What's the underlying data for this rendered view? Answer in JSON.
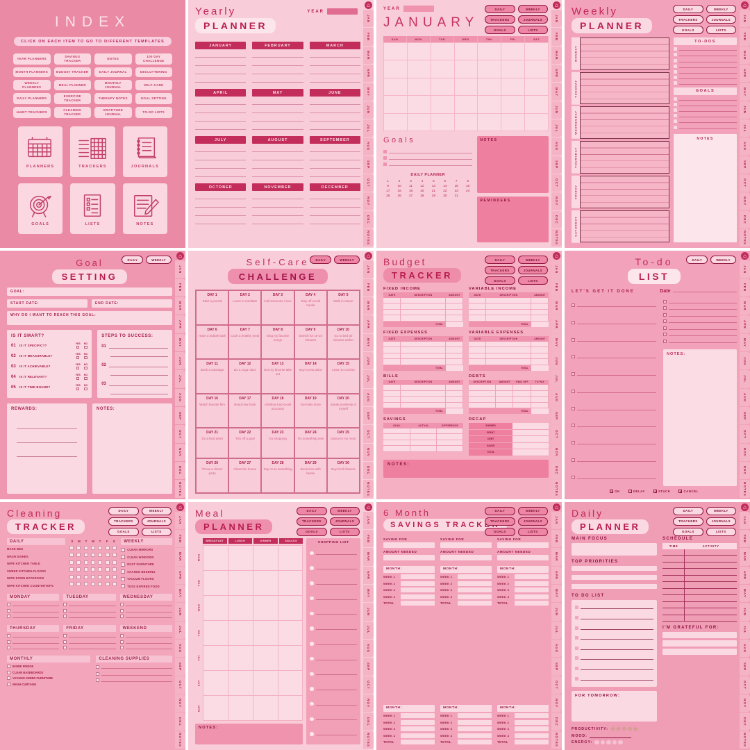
{
  "shared": {
    "home_icon": "⌂",
    "month_tabs": [
      "JAN",
      "FEB",
      "MAR",
      "APR",
      "MAY",
      "JUN",
      "JUL",
      "AUG",
      "SEP",
      "OCT",
      "NOV",
      "DEC",
      "NOTES"
    ],
    "nav_buttons": [
      "DAILY",
      "WEEKLY",
      "TRACKERS",
      "JOURNALS",
      "GOALS",
      "LISTS"
    ]
  },
  "index": {
    "title": "INDEX",
    "subtitle": "CLICK ON EACH ITEM TO GO TO DIFFERENT TEMPLATES",
    "buttons": [
      "YEAR PLANNERS",
      "SAVINGS TRACKER",
      "NOTES",
      "100 DAY CHALLENGE",
      "MONTH PLANNERS",
      "BUDGET TRACKER",
      "DAILY JOURNAL",
      "DECLUTTERING",
      "WEEKLY PLANNERS",
      "MEAL PLANNER",
      "MONTHLY JOURNAL",
      "SELF-CARE",
      "DAILY PLANNERS",
      "EXERCISE TRACKER",
      "THERAPY NOTES",
      "GOAL SETTING",
      "HABIT TRACKERS",
      "CLEANING TRACKER",
      "GRATITUDE JOURNAL",
      "TO-DO LISTS"
    ],
    "tiles": [
      {
        "icon": "calendar-icon",
        "label": "PLANNERS"
      },
      {
        "icon": "tracker-grid-icon",
        "label": "TRACKERS"
      },
      {
        "icon": "notebook-icon",
        "label": "JOURNALS"
      },
      {
        "icon": "target-icon",
        "label": "GOALS"
      },
      {
        "icon": "checklist-icon",
        "label": "LISTS"
      },
      {
        "icon": "pencil-paper-icon",
        "label": "NOTES"
      }
    ]
  },
  "yearly": {
    "title_script": "Yearly",
    "title_main": "PLANNER",
    "year_label": "YEAR",
    "months": [
      "JANUARY",
      "FEBRUARY",
      "MARCH",
      "APRIL",
      "MAY",
      "JUNE",
      "JULY",
      "AUGUST",
      "SEPTEMBER",
      "OCTOBER",
      "NOVEMBER",
      "DECEMBER"
    ]
  },
  "january": {
    "year_label": "YEAR",
    "title": "JANUARY",
    "day_headers": [
      "SUN",
      "MON",
      "TUE",
      "WED",
      "THU",
      "FRI",
      "SAT"
    ],
    "goals_label": "Goals",
    "daily_planner_label": "DAILY PLANNER",
    "day_numbers": [
      1,
      2,
      3,
      4,
      5,
      6,
      7,
      8,
      9,
      10,
      11,
      12,
      13,
      14,
      15,
      16,
      17,
      18,
      19,
      20,
      21,
      22,
      23,
      24,
      25,
      26,
      27,
      28,
      29,
      30,
      31
    ],
    "notes_label": "NOTES",
    "reminders_label": "REMINDERS"
  },
  "weekly": {
    "title_script": "Weekly",
    "title_main": "PLANNER",
    "days": [
      "MONDAY",
      "TUESDAY",
      "WEDNESDAY",
      "THURSDAY",
      "FRIDAY",
      "SATURDAY"
    ],
    "todos_label": "TO-DOS",
    "goals_label": "GOALS",
    "notes_label": "NOTES"
  },
  "goal": {
    "title_script": "Goal",
    "title_main": "SETTING",
    "fields": {
      "goal": "GOAL:",
      "start": "START DATE:",
      "end": "END DATE:",
      "why": "WHY DO I WANT TO REACH THIS GOAL:"
    },
    "smart_title": "IS IT SMART?",
    "smart_items": [
      {
        "num": "01",
        "q": "IS IT SPECIFIC??"
      },
      {
        "num": "02",
        "q": "IS IT MEASURABLE?"
      },
      {
        "num": "03",
        "q": "IS IT ACHIEVABLE?"
      },
      {
        "num": "04",
        "q": "IS IT RELEVANT?"
      },
      {
        "num": "05",
        "q": "IS IT TIME BOUND?"
      }
    ],
    "yes": "YES",
    "no": "NO",
    "steps_title": "STEPS TO SUCCESS:",
    "step_nums": [
      "01",
      "02",
      "03"
    ],
    "rewards_label": "REWARDS:",
    "notes_label": "NOTES:"
  },
  "selfcare": {
    "title_script": "Self-Care",
    "title_main": "CHALLENGE",
    "cells": [
      {
        "d": "DAY 1",
        "t": "Start a journal"
      },
      {
        "d": "DAY 2",
        "t": "Learn to meditate"
      },
      {
        "d": "DAY 3",
        "t": "Call someone I love"
      },
      {
        "d": "DAY 4",
        "t": "Stay off social media"
      },
      {
        "d": "DAY 5",
        "t": "Walk in nature"
      },
      {
        "d": "DAY 6",
        "t": "Have a bubble bath"
      },
      {
        "d": "DAY 7",
        "t": "Cook a healthy meal"
      },
      {
        "d": "DAY 8",
        "t": "Sing my favorite songs"
      },
      {
        "d": "DAY 9",
        "t": "Stretch for 10-15 minutes"
      },
      {
        "d": "DAY 10",
        "t": "Go to bed 30 minutes earlier"
      },
      {
        "d": "DAY 11",
        "t": "Book a massage"
      },
      {
        "d": "DAY 12",
        "t": "Do a yoga class"
      },
      {
        "d": "DAY 13",
        "t": "Get my favorite take out"
      },
      {
        "d": "DAY 14",
        "t": "Buy a new plant"
      },
      {
        "d": "DAY 15",
        "t": "Learn to crochet"
      },
      {
        "d": "DAY 16",
        "t": "Watch favorite film"
      },
      {
        "d": "DAY 17",
        "t": "Read new book"
      },
      {
        "d": "DAY 18",
        "t": "Unfollow bad social accounts"
      },
      {
        "d": "DAY 19",
        "t": "Get nails done"
      },
      {
        "d": "DAY 20",
        "t": "Speak positively to myself"
      },
      {
        "d": "DAY 21",
        "t": "Do a kind deed"
      },
      {
        "d": "DAY 22",
        "t": "Tick off a goal"
      },
      {
        "d": "DAY 23",
        "t": "Go shopping"
      },
      {
        "d": "DAY 24",
        "t": "Try something new"
      },
      {
        "d": "DAY 25",
        "t": "Dance in my room"
      },
      {
        "d": "DAY 26",
        "t": "Throw a dinner party"
      },
      {
        "d": "DAY 27",
        "t": "Clean the house"
      },
      {
        "d": "DAY 28",
        "t": "Say no to something"
      },
      {
        "d": "DAY 29",
        "t": "Book time with bestie"
      },
      {
        "d": "DAY 30",
        "t": "Buy fresh flowers"
      }
    ]
  },
  "budget": {
    "title_script": "Budget",
    "title_main": "TRACKER",
    "sections": {
      "fixed_income": "FIXED INCOME",
      "variable_income": "VARIABLE INCOME",
      "fixed_expenses": "FIXED EXPENSES",
      "variable_expenses": "VARIABLE EXPENSES",
      "bills": "BILLS",
      "debts": "DEBTS",
      "savings": "SAVINGS",
      "recap": "RECAP"
    },
    "cols3": [
      "DATE",
      "DESCRIPTION",
      "AMOUNT"
    ],
    "debt_cols": [
      "DESCRIPTION",
      "AMOUNT",
      "PAID OFF",
      "TO PAY"
    ],
    "savings_cols": [
      "GOAL",
      "ACTUAL",
      "DIFFERENCE"
    ],
    "recap_rows": [
      "EARNED",
      "SPENT",
      "DEBT",
      "SAVED",
      "TOTAL"
    ],
    "total_label": "TOTAL",
    "notes_label": "NOTES:"
  },
  "todo": {
    "title_script": "To-do",
    "title_main": "LIST",
    "tagline": "LET'S GET IT DONE",
    "date_label": "Date",
    "notes_label": "NOTES:",
    "legend": [
      {
        "glyph": "✓",
        "label": "OK"
      },
      {
        "glyph": "–",
        "label": "DELAY"
      },
      {
        "glyph": "↗",
        "label": "STUCK"
      },
      {
        "glyph": "✕",
        "label": "CANCEL"
      }
    ]
  },
  "cleaning": {
    "title_script": "Cleaning",
    "title_main": "TRACKER",
    "daily_label": "DAILY",
    "week_letters": [
      "S",
      "M",
      "T",
      "W",
      "T",
      "F",
      "S"
    ],
    "daily_tasks": [
      "MAKE BED",
      "WASH DISHES",
      "WIPE KITCHEN TABLE",
      "SWEEP KITCHEN FLOORS",
      "WIPE DOWN BATHROOM",
      "WIPE KITCHEN COUNTERTOPS"
    ],
    "weekly_label": "WEEKLY",
    "weekly_tasks": [
      "CLEAN MIRRORS",
      "CLEAN WINDOWS",
      "DUST FURNITURE",
      "CHANGE BEDDING",
      "VACUUM FLOORS",
      "TOSS EXPIRED FOOD"
    ],
    "day_sections": [
      "MONDAY",
      "TUESDAY",
      "WEDNESDAY",
      "THURSDAY",
      "FRIDAY",
      "WEEKEND"
    ],
    "monthly_label": "MONTHLY",
    "monthly_tasks": [
      "INSIDE FRIDGE",
      "CLEAN BASEBOARDS",
      "VACUUM UNDER FURNITURE",
      "WASH CURTAINS"
    ],
    "supplies_label": "CLEANING SUPPLIES"
  },
  "meal": {
    "title_script": "Meal",
    "title_main": "PLANNER",
    "columns": [
      "BREAKFAST",
      "LUNCH",
      "DINNER",
      "SNACKS"
    ],
    "days": [
      "MON",
      "TUE",
      "WED",
      "THU",
      "FRI",
      "SAT",
      "SUN"
    ],
    "shopping_label": "SHOPPING LIST",
    "notes_label": "NOTES:"
  },
  "savings": {
    "title_script": "6 Month",
    "title_main": "SAVINGS TRACKER",
    "saving_for_label": "SAVING FOR",
    "amount_label": "AMOUNT NEEDED",
    "month_label": "MONTH:",
    "weeks": [
      "WEEK 1",
      "WEEK 2",
      "WEEK 3",
      "WEEK 4"
    ],
    "total_label": "TOTAL"
  },
  "daily": {
    "title_script": "Daily",
    "title_main": "PLANNER",
    "main_focus": "MAIN FOCUS",
    "schedule": "SCHEDULE",
    "time_col": "TIME",
    "activity_col": "ACTIVITY",
    "priorities": "TOP PRIORITIES",
    "todo": "TO DO LIST",
    "tomorrow": "FOR TOMORROW:",
    "grateful": "I'M GRATEFUL FOR:",
    "productivity": "PRODUCTIVITY:",
    "star_glyph": "☆",
    "mood": "MOOD:",
    "energy": "ENERGY:"
  }
}
